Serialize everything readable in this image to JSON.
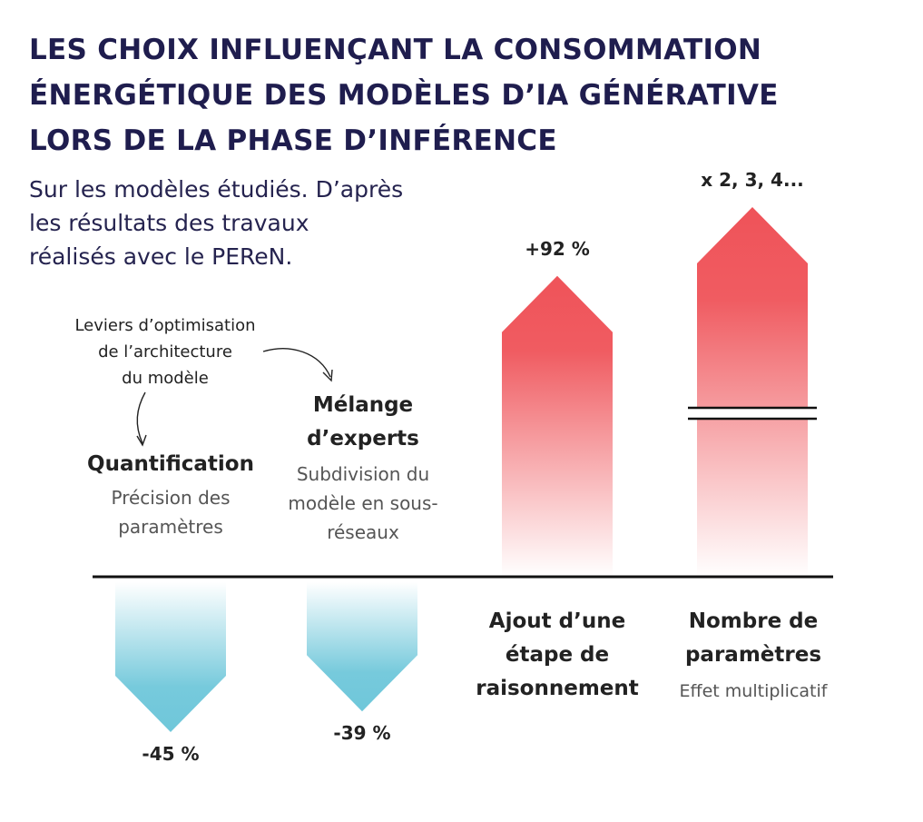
{
  "title_lines": [
    "LES CHOIX INFLUENÇANT LA CONSOMMATION",
    "ÉNERGÉTIQUE DES MODÈLES D’IA GÉNÉRATIVE",
    "LORS DE LA PHASE D’INFÉRENCE"
  ],
  "subtitle_lines": [
    "Sur les modèles étudiés. D’après",
    "les résultats des travaux",
    "réalisés avec le PEReN."
  ],
  "note_lines": [
    "Leviers d’optimisation",
    "de l’architecture",
    "du modèle"
  ],
  "levers": [
    {
      "title": "Quantification",
      "desc_lines": [
        "Précision des",
        "paramètres"
      ]
    },
    {
      "title_lines": [
        "Mélange",
        "d’experts"
      ],
      "desc_lines": [
        "Subdivision du",
        "modèle en sous-",
        "réseaux"
      ]
    }
  ],
  "categories": [
    {
      "label_lines": [
        "Ajout d’une",
        "étape de",
        "raisonnement"
      ]
    },
    {
      "label_lines": [
        "Nombre de",
        "paramètres"
      ],
      "desc": "Effet multiplicatif"
    }
  ],
  "colors": {
    "title": "#1f1d4e",
    "increase": "#ef5359",
    "decrease": "#6fc7da",
    "baseline": "#111111"
  },
  "chart_data": {
    "type": "bar",
    "categories": [
      "Quantification",
      "Mélange d’experts",
      "Ajout d’une étape de raisonnement",
      "Nombre de paramètres"
    ],
    "values": [
      -45,
      -39,
      92,
      null
    ],
    "value_labels": [
      "-45 %",
      "-39 %",
      "+92 %",
      "x 2, 3, 4..."
    ],
    "axis_break_on": "Nombre de paramètres",
    "title": "LES CHOIX INFLUENÇANT LA CONSOMMATION ÉNERGÉTIQUE DES MODÈLES D’IA GÉNÉRATIVE LORS DE LA PHASE D’INFÉRENCE",
    "xlabel": "",
    "ylabel": "",
    "grid": false
  }
}
